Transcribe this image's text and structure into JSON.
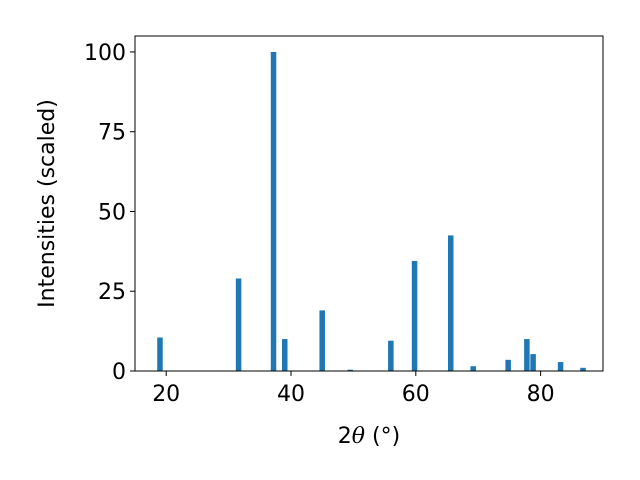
{
  "chart_data": {
    "type": "bar",
    "x": [
      19.0,
      31.6,
      37.2,
      39.0,
      45.0,
      49.5,
      56.0,
      59.8,
      65.6,
      69.2,
      74.8,
      77.8,
      78.8,
      83.2,
      86.8
    ],
    "values": [
      10.5,
      29.0,
      100.0,
      10.0,
      19.0,
      0.4,
      9.5,
      34.5,
      42.5,
      1.5,
      3.5,
      10.0,
      5.3,
      2.8,
      1.0
    ],
    "xlim": [
      15,
      90
    ],
    "ylim": [
      0,
      105
    ],
    "xticks": [
      20,
      40,
      60,
      80
    ],
    "yticks": [
      0,
      25,
      50,
      75,
      100
    ],
    "x_tick_labels": [
      "20",
      "40",
      "60",
      "80"
    ],
    "y_tick_labels": [
      "0",
      "25",
      "50",
      "75",
      "100"
    ],
    "xlabel_prefix": "2",
    "xlabel_symbol": "θ",
    "xlabel_unit": " (°)",
    "ylabel": "Intensities (scaled)",
    "bar_color": "#1f77b4",
    "grid": false,
    "legend": "none"
  }
}
